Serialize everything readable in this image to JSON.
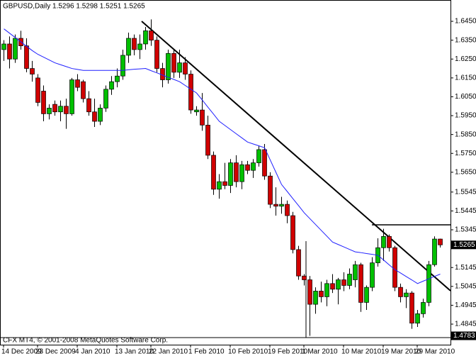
{
  "chart_data": {
    "type": "candlestick",
    "title": "GBPUSD,Daily  1.5296 1.5298 1.5251 1.5265",
    "footer": "CFX MT4, © 2001-2008 MetaQuotes Software Corp.",
    "up_color": "#00c000",
    "down_color": "#d00000",
    "line_color": "#2020ff",
    "categories": [
      "14 Dec 2009",
      null,
      null,
      null,
      null,
      null,
      "23 Dec 2009",
      null,
      null,
      null,
      null,
      null,
      null,
      "4 Jan 2010",
      null,
      null,
      null,
      null,
      null,
      null,
      "13 Jan 2010",
      null,
      null,
      null,
      null,
      null,
      "22 Jan 2010",
      null,
      null,
      null,
      null,
      null,
      null,
      "1 Feb 2010",
      null,
      null,
      null,
      null,
      null,
      null,
      "10 Feb 2010",
      null,
      null,
      null,
      null,
      null,
      null,
      "19 Feb 2010",
      null,
      null,
      null,
      null,
      null,
      "1 Mar 2010",
      null,
      null,
      null,
      null,
      null,
      null,
      "10 Mar 2010",
      null,
      null,
      null,
      null,
      null,
      null,
      "19 Mar 2010",
      null,
      null,
      null,
      null,
      null,
      "29 Mar 2010",
      null,
      null,
      null,
      null
    ],
    "open": [
      1.63,
      1.633,
      1.625,
      1.636,
      1.632,
      1.62,
      1.615,
      1.608,
      1.596,
      1.601,
      1.597,
      1.6,
      1.596,
      1.614,
      1.613,
      1.604,
      1.597,
      1.592,
      1.599,
      1.609,
      1.613,
      1.616,
      1.627,
      1.636,
      1.63,
      1.633,
      1.64,
      1.635,
      1.62,
      1.614,
      1.628,
      1.618,
      1.623,
      1.617,
      1.597,
      1.598,
      1.59,
      1.574,
      1.556,
      1.56,
      1.558,
      1.57,
      1.56,
      1.569,
      1.566,
      1.57,
      1.577,
      1.563,
      1.548,
      1.547,
      1.548,
      1.542,
      1.524,
      1.51,
      1.508,
      1.495,
      1.502,
      1.499,
      1.506,
      1.503,
      1.508,
      1.505,
      1.508,
      1.516,
      1.496,
      1.504,
      1.517,
      1.525,
      1.531,
      1.525,
      1.504,
      1.499,
      1.501,
      1.485,
      1.49,
      1.496,
      1.516,
      1.5296
    ],
    "high": [
      1.635,
      1.637,
      1.638,
      1.64,
      1.636,
      1.624,
      1.617,
      1.611,
      1.601,
      1.603,
      1.603,
      1.604,
      1.615,
      1.617,
      1.614,
      1.608,
      1.604,
      1.601,
      1.611,
      1.616,
      1.62,
      1.63,
      1.639,
      1.638,
      1.638,
      1.642,
      1.646,
      1.637,
      1.623,
      1.63,
      1.63,
      1.63,
      1.626,
      1.619,
      1.6,
      1.607,
      1.595,
      1.576,
      1.564,
      1.57,
      1.572,
      1.574,
      1.571,
      1.571,
      1.572,
      1.579,
      1.58,
      1.565,
      1.557,
      1.552,
      1.55,
      1.544,
      1.526,
      1.511,
      1.51,
      1.504,
      1.507,
      1.508,
      1.511,
      1.509,
      1.512,
      1.514,
      1.518,
      1.517,
      1.505,
      1.52,
      1.53,
      1.535,
      1.532,
      1.526,
      1.506,
      1.503,
      1.502,
      1.492,
      1.498,
      1.518,
      1.531,
      1.5298
    ],
    "low": [
      1.624,
      1.62,
      1.623,
      1.63,
      1.618,
      1.613,
      1.6,
      1.592,
      1.593,
      1.595,
      1.592,
      1.588,
      1.595,
      1.608,
      1.602,
      1.595,
      1.589,
      1.59,
      1.597,
      1.606,
      1.61,
      1.614,
      1.623,
      1.627,
      1.625,
      1.63,
      1.632,
      1.618,
      1.61,
      1.612,
      1.615,
      1.615,
      1.614,
      1.596,
      1.595,
      1.587,
      1.572,
      1.553,
      1.551,
      1.556,
      1.554,
      1.557,
      1.556,
      1.564,
      1.562,
      1.568,
      1.561,
      1.546,
      1.542,
      1.543,
      1.538,
      1.522,
      1.508,
      1.505,
      1.4783,
      1.49,
      1.496,
      1.494,
      1.501,
      1.495,
      1.502,
      1.503,
      1.504,
      1.491,
      1.492,
      1.502,
      1.515,
      1.518,
      1.523,
      1.502,
      1.496,
      1.493,
      1.482,
      1.483,
      1.488,
      1.494,
      1.515,
      1.5251
    ],
    "close": [
      1.633,
      1.625,
      1.636,
      1.632,
      1.62,
      1.617,
      1.602,
      1.596,
      1.599,
      1.597,
      1.6,
      1.596,
      1.614,
      1.61,
      1.604,
      1.597,
      1.592,
      1.599,
      1.609,
      1.613,
      1.616,
      1.627,
      1.636,
      1.63,
      1.633,
      1.64,
      1.635,
      1.62,
      1.614,
      1.628,
      1.618,
      1.623,
      1.617,
      1.598,
      1.598,
      1.59,
      1.574,
      1.556,
      1.56,
      1.558,
      1.57,
      1.56,
      1.569,
      1.566,
      1.57,
      1.577,
      1.563,
      1.548,
      1.547,
      1.548,
      1.542,
      1.524,
      1.51,
      1.508,
      1.495,
      1.502,
      1.499,
      1.506,
      1.503,
      1.508,
      1.505,
      1.511,
      1.516,
      1.496,
      1.504,
      1.517,
      1.525,
      1.531,
      1.525,
      1.504,
      1.499,
      1.501,
      1.485,
      1.49,
      1.496,
      1.516,
      1.5296,
      1.5265
    ],
    "line": [
      1.641,
      1.6387,
      1.6364,
      1.6341,
      1.6318,
      1.6295,
      1.6275,
      1.626,
      1.6245,
      1.623,
      1.622,
      1.621,
      1.62,
      1.6195,
      1.619,
      1.619,
      1.619,
      1.619,
      1.619,
      1.619,
      1.619,
      1.619,
      1.6193,
      1.6196,
      1.6198,
      1.62,
      1.6188,
      1.6177,
      1.6165,
      1.6153,
      1.6142,
      1.613,
      1.611,
      1.609,
      1.607,
      1.6033,
      1.5995,
      1.5958,
      1.592,
      1.5898,
      1.5876,
      1.5854,
      1.5832,
      1.581,
      1.58,
      1.579,
      1.578,
      1.5715,
      1.565,
      1.5585,
      1.5548,
      1.551,
      1.5473,
      1.5435,
      1.5404,
      1.5373,
      1.5342,
      1.5311,
      1.528,
      1.5267,
      1.5254,
      1.5241,
      1.5228,
      1.5224,
      1.5219,
      1.5215,
      1.521,
      1.5185,
      1.5159,
      1.5134,
      1.5116,
      1.5097,
      1.5079,
      1.506,
      1.5073,
      1.5085,
      1.5098,
      1.511
    ],
    "ylim": [
      1.4736,
      1.6563
    ],
    "yticks": [
      {
        "value": 1.645,
        "label": "1.6450"
      },
      {
        "value": 1.635,
        "label": "1.6350"
      },
      {
        "value": 1.625,
        "label": "1.6250"
      },
      {
        "value": 1.615,
        "label": "1.6150"
      },
      {
        "value": 1.605,
        "label": "1.6050"
      },
      {
        "value": 1.595,
        "label": "1.5950"
      },
      {
        "value": 1.585,
        "label": "1.5850"
      },
      {
        "value": 1.575,
        "label": "1.5750"
      },
      {
        "value": 1.565,
        "label": "1.5650"
      },
      1.5545,
      1.5445,
      1.5345,
      1.5145,
      1.5045,
      1.4945,
      1.4845
    ],
    "price_labels": [
      1.5265,
      1.4783
    ]
  }
}
